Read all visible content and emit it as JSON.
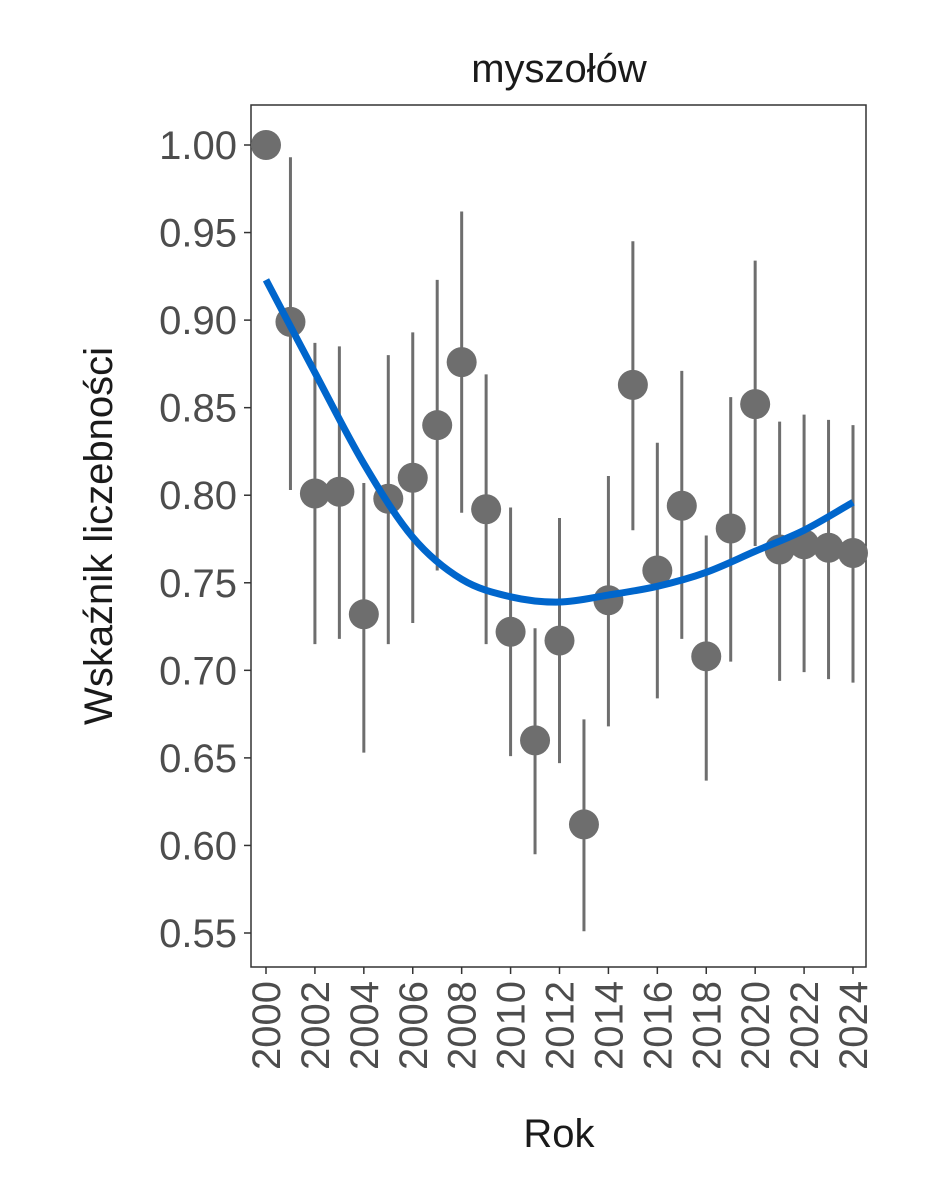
{
  "chart_data": {
    "type": "scatter",
    "title": "myszołów",
    "xlabel": "Rok",
    "ylabel": "Wskaźnik liczebności",
    "xlim": [
      1999.6,
      2024.6
    ],
    "ylim": [
      0.528,
      1.022
    ],
    "x_ticks": [
      2000,
      2002,
      2004,
      2006,
      2008,
      2010,
      2012,
      2014,
      2016,
      2018,
      2020,
      2022,
      2024
    ],
    "y_ticks": [
      0.55,
      0.6,
      0.65,
      0.7,
      0.75,
      0.8,
      0.85,
      0.9,
      0.95,
      1.0
    ],
    "y_tick_labels": [
      "0.55",
      "0.60",
      "0.65",
      "0.70",
      "0.75",
      "0.80",
      "0.85",
      "0.90",
      "0.95",
      "1.00"
    ],
    "grid": false,
    "points": {
      "x": [
        2000,
        2001,
        2002,
        2003,
        2004,
        2005,
        2006,
        2007,
        2008,
        2009,
        2010,
        2011,
        2012,
        2013,
        2014,
        2015,
        2016,
        2017,
        2018,
        2019,
        2020,
        2021,
        2022,
        2023,
        2024
      ],
      "y": [
        1.0,
        0.899,
        0.801,
        0.802,
        0.732,
        0.798,
        0.81,
        0.84,
        0.876,
        0.792,
        0.722,
        0.66,
        0.717,
        0.612,
        0.74,
        0.863,
        0.757,
        0.794,
        0.708,
        0.781,
        0.852,
        0.769,
        0.772,
        0.77,
        0.767
      ],
      "lower": [
        null,
        0.803,
        0.715,
        0.718,
        0.653,
        0.715,
        0.727,
        0.757,
        0.79,
        0.715,
        0.651,
        0.595,
        0.647,
        0.551,
        0.668,
        0.78,
        0.684,
        0.718,
        0.637,
        0.705,
        0.771,
        0.694,
        0.699,
        0.695,
        0.693
      ],
      "upper": [
        null,
        0.993,
        0.887,
        0.885,
        0.807,
        0.88,
        0.893,
        0.923,
        0.962,
        0.869,
        0.793,
        0.724,
        0.787,
        0.672,
        0.811,
        0.945,
        0.83,
        0.871,
        0.777,
        0.856,
        0.934,
        0.842,
        0.846,
        0.843,
        0.84
      ],
      "color": "#6e6e6e"
    },
    "trend": {
      "x": [
        2000,
        2002,
        2004,
        2006,
        2008,
        2010,
        2012,
        2014,
        2016,
        2018,
        2020,
        2022,
        2024
      ],
      "y": [
        0.923,
        0.87,
        0.818,
        0.776,
        0.752,
        0.742,
        0.739,
        0.743,
        0.748,
        0.756,
        0.768,
        0.78,
        0.796
      ],
      "color": "#0066cc"
    }
  }
}
